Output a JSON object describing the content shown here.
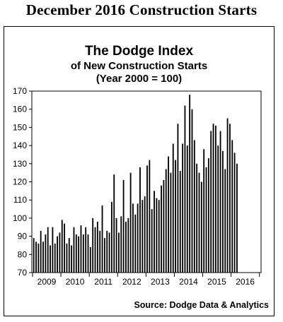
{
  "header": {
    "title": "December 2016 Construction Starts"
  },
  "chart_data": {
    "type": "bar",
    "title": "The Dodge Index",
    "subtitle": "of New Construction Starts",
    "subtitle2": "(Year 2000 = 100)",
    "xlabel": "",
    "ylabel": "",
    "ylim": [
      70,
      170
    ],
    "yticks": [
      70,
      80,
      90,
      100,
      110,
      120,
      130,
      140,
      150,
      160,
      170
    ],
    "grid": false,
    "year_labels": [
      "2009",
      "2010",
      "2011",
      "2012",
      "2013",
      "2014",
      "2015",
      "2016"
    ],
    "months_per_year": 12,
    "series": [
      {
        "color": "#000000",
        "values": [
          89,
          87,
          86,
          93,
          87,
          91,
          95,
          85,
          95,
          86,
          90,
          92,
          99,
          97,
          86,
          89,
          85,
          95,
          91,
          90,
          96,
          91,
          95,
          91,
          84,
          100,
          95,
          98,
          93,
          107,
          89,
          93,
          92,
          109,
          124,
          100,
          92,
          101,
          121,
          98,
          100,
          125,
          108,
          102,
          108,
          128,
          110,
          112,
          129,
          132,
          105,
          115,
          111,
          110,
          118,
          121,
          127,
          134,
          125,
          141,
          132,
          152,
          126,
          141,
          162,
          140,
          168,
          160,
          143,
          130,
          125,
          120,
          138,
          128,
          133,
          148,
          152,
          151,
          140,
          148,
          137,
          127,
          155,
          152,
          143,
          136,
          130
        ]
      }
    ],
    "source": "Source: Dodge Data & Analytics"
  }
}
